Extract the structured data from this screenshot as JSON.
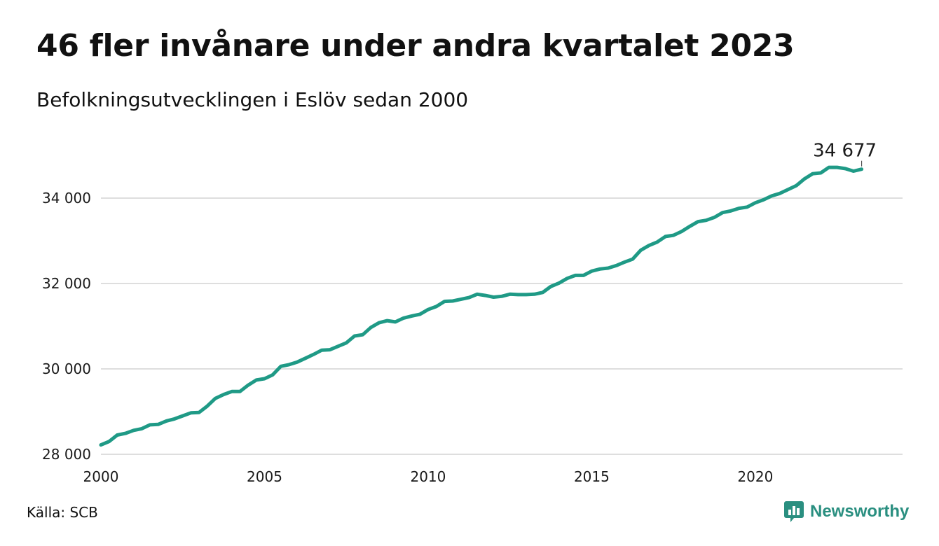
{
  "header": {
    "title": "46 fler invånare under andra kvartalet 2023",
    "subtitle": "Befolkningsutvecklingen i Eslöv sedan 2000"
  },
  "footer": {
    "source": "Källa: SCB",
    "brand": "Newsworthy",
    "brand_icon": "newsworthy-logo-icon",
    "brand_color": "#2a8f80"
  },
  "chart_data": {
    "type": "line",
    "title": "46 fler invånare under andra kvartalet 2023",
    "subtitle": "Befolkningsutvecklingen i Eslöv sedan 2000",
    "xlabel": "",
    "ylabel": "",
    "xlim": [
      2000,
      2024.5
    ],
    "ylim": [
      28000,
      35000
    ],
    "x_ticks": [
      2000,
      2005,
      2010,
      2015,
      2020
    ],
    "x_tick_labels": [
      "2000",
      "2005",
      "2010",
      "2015",
      "2020"
    ],
    "y_ticks": [
      28000,
      30000,
      32000,
      34000
    ],
    "y_tick_labels": [
      "28 000",
      "30 000",
      "32 000",
      "34 000"
    ],
    "grid": "horizontal",
    "legend": "none",
    "line_color": "#1f9a86",
    "annotation": {
      "label": "34 677",
      "x": 2023.25,
      "y": 34677
    },
    "series": [
      {
        "x": [
          2000.0,
          2000.25,
          2000.5,
          2000.75,
          2001.0,
          2001.25,
          2001.5,
          2001.75,
          2002.0,
          2002.25,
          2002.5,
          2002.75,
          2003.0,
          2003.25,
          2003.5,
          2003.75,
          2004.0,
          2004.25,
          2004.5,
          2004.75,
          2005.0,
          2005.25,
          2005.5,
          2005.75,
          2006.0,
          2006.25,
          2006.5,
          2006.75,
          2007.0,
          2007.25,
          2007.5,
          2007.75,
          2008.0,
          2008.25,
          2008.5,
          2008.75,
          2009.0,
          2009.25,
          2009.5,
          2009.75,
          2010.0,
          2010.25,
          2010.5,
          2010.75,
          2011.0,
          2011.25,
          2011.5,
          2011.75,
          2012.0,
          2012.25,
          2012.5,
          2012.75,
          2013.0,
          2013.25,
          2013.5,
          2013.75,
          2014.0,
          2014.25,
          2014.5,
          2014.75,
          2015.0,
          2015.25,
          2015.5,
          2015.75,
          2016.0,
          2016.25,
          2016.5,
          2016.75,
          2017.0,
          2017.25,
          2017.5,
          2017.75,
          2018.0,
          2018.25,
          2018.5,
          2018.75,
          2019.0,
          2019.25,
          2019.5,
          2019.75,
          2020.0,
          2020.25,
          2020.5,
          2020.75,
          2021.0,
          2021.25,
          2021.5,
          2021.75,
          2022.0,
          2022.25,
          2022.5,
          2022.75,
          2023.0,
          2023.25
        ],
        "values": [
          28220,
          28300,
          28450,
          28490,
          28560,
          28600,
          28690,
          28700,
          28780,
          28830,
          28900,
          28970,
          28980,
          29130,
          29310,
          29400,
          29470,
          29470,
          29620,
          29740,
          29770,
          29860,
          30060,
          30100,
          30160,
          30250,
          30340,
          30440,
          30450,
          30530,
          30610,
          30770,
          30800,
          30970,
          31080,
          31130,
          31100,
          31190,
          31240,
          31280,
          31390,
          31460,
          31580,
          31590,
          31630,
          31670,
          31750,
          31720,
          31680,
          31700,
          31750,
          31740,
          31740,
          31750,
          31790,
          31930,
          32010,
          32120,
          32190,
          32190,
          32290,
          32340,
          32360,
          32420,
          32500,
          32570,
          32780,
          32890,
          32970,
          33100,
          33130,
          33220,
          33340,
          33450,
          33480,
          33550,
          33660,
          33700,
          33760,
          33790,
          33890,
          33960,
          34050,
          34110,
          34200,
          34290,
          34450,
          34570,
          34590,
          34720,
          34720,
          34690,
          34631,
          34677
        ]
      }
    ]
  }
}
